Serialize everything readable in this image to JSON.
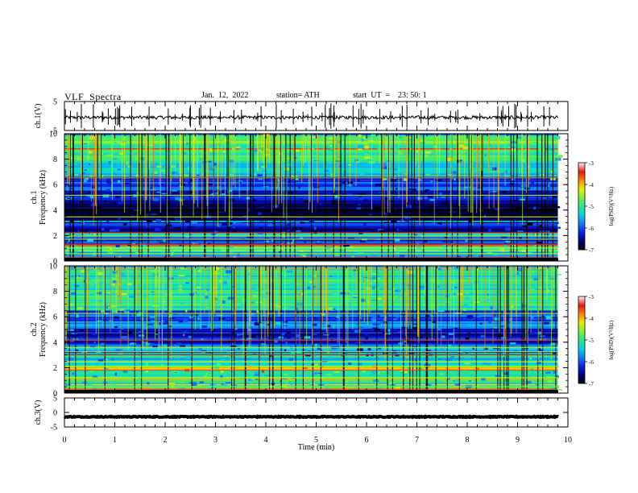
{
  "header": {
    "title": "VLF  Spectra",
    "date": "Jan.  12,  2022",
    "station": "station= ATH",
    "start": "start  UT  =    23: 50: 1"
  },
  "chart_data": [
    {
      "type": "line",
      "title": "",
      "ylabel": "ch.1(V)",
      "ylim": [
        -5,
        5
      ],
      "yticks": [
        "5",
        "-5"
      ],
      "xlim": [
        0,
        10
      ],
      "baseline": -0.5,
      "color": "#000000"
    },
    {
      "type": "heatmap",
      "ylabel": "ch.1\nFrequency  (kHz)",
      "ylim": [
        0,
        10
      ],
      "yticks": [
        "0",
        "2",
        "4",
        "6",
        "8",
        "10"
      ],
      "xlim": [
        0,
        9.8
      ],
      "bands_khz": [
        {
          "from": 0.0,
          "to": 0.35,
          "log_psd": -3.6
        },
        {
          "from": 0.35,
          "to": 0.8,
          "log_psd": -5.4
        },
        {
          "from": 0.8,
          "to": 1.3,
          "log_psd": -4.8
        },
        {
          "from": 1.3,
          "to": 2.0,
          "log_psd": -6.0
        },
        {
          "from": 2.0,
          "to": 2.3,
          "log_psd": -5.2
        },
        {
          "from": 2.3,
          "to": 3.2,
          "log_psd": -6.4
        },
        {
          "from": 3.2,
          "to": 4.8,
          "log_psd": -6.8
        },
        {
          "from": 4.8,
          "to": 6.5,
          "log_psd": -6.1
        },
        {
          "from": 6.5,
          "to": 8.0,
          "log_psd": -5.3
        },
        {
          "from": 8.0,
          "to": 10.0,
          "log_psd": -4.9
        }
      ]
    },
    {
      "type": "heatmap",
      "ylabel": "ch.2\nFrequency  (kHz)",
      "ylim": [
        0,
        10
      ],
      "yticks": [
        "0",
        "2",
        "4",
        "6",
        "8",
        "10"
      ],
      "xlim": [
        0,
        9.8
      ],
      "bands_khz": [
        {
          "from": 0.0,
          "to": 0.6,
          "log_psd": -4.6
        },
        {
          "from": 0.6,
          "to": 1.8,
          "log_psd": -5.2
        },
        {
          "from": 1.8,
          "to": 2.2,
          "log_psd": -4.3
        },
        {
          "from": 2.2,
          "to": 3.0,
          "log_psd": -5.3
        },
        {
          "from": 3.0,
          "to": 4.0,
          "log_psd": -5.8
        },
        {
          "from": 4.0,
          "to": 5.2,
          "log_psd": -6.2
        },
        {
          "from": 5.2,
          "to": 6.5,
          "log_psd": -5.9
        },
        {
          "from": 6.5,
          "to": 10.0,
          "log_psd": -5.1
        }
      ]
    },
    {
      "type": "line",
      "ylabel": "ch.3(V)",
      "ylim": [
        -5,
        5
      ],
      "yticks": [
        "5",
        "0",
        "-5"
      ],
      "xlim": [
        0,
        10
      ],
      "baseline": -1.5,
      "color": "#000000"
    }
  ],
  "x_axis": {
    "label": "Time  (min)",
    "ticks": [
      "0",
      "1",
      "2",
      "3",
      "4",
      "5",
      "6",
      "7",
      "8",
      "9",
      "10"
    ]
  },
  "colorbars": [
    {
      "label": "log(PSD)(V²/Hz)",
      "ticks": [
        "-3",
        "-4",
        "-5",
        "-6",
        "-7"
      ],
      "range": [
        -7,
        -3
      ]
    },
    {
      "label": "log(PSD)(V²/Hz)",
      "ticks": [
        "-3",
        "-4",
        "-5",
        "-6",
        "-7"
      ],
      "range": [
        -7,
        -3
      ]
    }
  ]
}
